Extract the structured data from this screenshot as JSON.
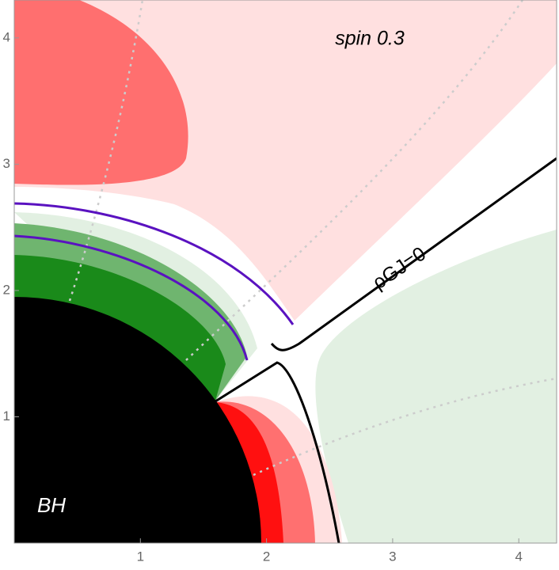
{
  "chart_data": {
    "type": "contour",
    "title": "spin 0.3",
    "annotations": [
      "ρGJ=0",
      "BH"
    ],
    "xlim": [
      0,
      4.3
    ],
    "ylim": [
      0,
      4.3
    ],
    "xticks": [
      1,
      2,
      3,
      4
    ],
    "yticks": [
      1,
      2,
      3,
      4
    ]
  }
}
